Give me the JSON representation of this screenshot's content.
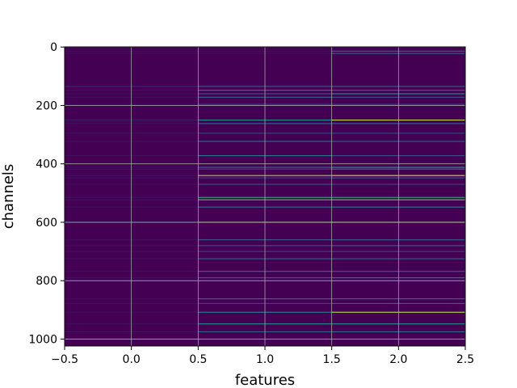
{
  "chart_data": {
    "type": "heatmap",
    "title": "",
    "xlabel": "features",
    "ylabel": "channels",
    "xlim": [
      -0.5,
      2.5
    ],
    "ylim": [
      1023.5,
      -0.5
    ],
    "x_ticks": [
      -0.5,
      0.0,
      0.5,
      1.0,
      1.5,
      2.0,
      2.5
    ],
    "x_tick_labels": [
      "−0.5",
      "0.0",
      "0.5",
      "1.0",
      "1.5",
      "2.0",
      "2.5"
    ],
    "y_ticks": [
      0,
      200,
      400,
      600,
      800,
      1000
    ],
    "y_tick_labels": [
      "0",
      "200",
      "400",
      "600",
      "800",
      "1000"
    ],
    "grid": true,
    "colormap": "viridis",
    "background_color": "#440154",
    "columns": [
      0,
      1,
      2
    ],
    "rows": 1024,
    "bright_channels": [
      {
        "channel": 14,
        "values": [
          0.05,
          0.05,
          0.35
        ]
      },
      {
        "channel": 22,
        "values": [
          0.05,
          0.05,
          0.3
        ]
      },
      {
        "channel": 135,
        "values": [
          0.12,
          0.3,
          0.3
        ]
      },
      {
        "channel": 148,
        "values": [
          0.05,
          0.4,
          0.35
        ]
      },
      {
        "channel": 160,
        "values": [
          0.05,
          0.25,
          0.5
        ]
      },
      {
        "channel": 172,
        "values": [
          0.05,
          0.3,
          0.25
        ]
      },
      {
        "channel": 196,
        "values": [
          0.05,
          0.2,
          0.2
        ]
      },
      {
        "channel": 250,
        "values": [
          0.08,
          0.5,
          0.9
        ]
      },
      {
        "channel": 262,
        "values": [
          0.05,
          0.3,
          0.3
        ]
      },
      {
        "channel": 295,
        "values": [
          0.05,
          0.2,
          0.2
        ]
      },
      {
        "channel": 323,
        "values": [
          0.05,
          0.35,
          0.3
        ]
      },
      {
        "channel": 372,
        "values": [
          0.05,
          0.4,
          0.25
        ]
      },
      {
        "channel": 412,
        "values": [
          0.05,
          0.35,
          0.55
        ]
      },
      {
        "channel": 418,
        "values": [
          0.05,
          0.2,
          0.4
        ]
      },
      {
        "channel": 440,
        "values": [
          0.05,
          0.85,
          0.95
        ]
      },
      {
        "channel": 448,
        "values": [
          0.05,
          0.2,
          0.3
        ]
      },
      {
        "channel": 470,
        "values": [
          0.05,
          0.25,
          0.2
        ]
      },
      {
        "channel": 515,
        "values": [
          0.05,
          0.6,
          0.6
        ]
      },
      {
        "channel": 523,
        "values": [
          0.05,
          0.7,
          0.75
        ]
      },
      {
        "channel": 548,
        "values": [
          0.05,
          0.35,
          0.4
        ]
      },
      {
        "channel": 600,
        "values": [
          0.3,
          0.85,
          0.85
        ]
      },
      {
        "channel": 660,
        "values": [
          0.05,
          0.3,
          0.3
        ]
      },
      {
        "channel": 680,
        "values": [
          0.05,
          0.25,
          0.3
        ]
      },
      {
        "channel": 700,
        "values": [
          0.05,
          0.2,
          0.2
        ]
      },
      {
        "channel": 725,
        "values": [
          0.05,
          0.3,
          0.3
        ]
      },
      {
        "channel": 768,
        "values": [
          0.05,
          0.35,
          0.3
        ]
      },
      {
        "channel": 790,
        "values": [
          0.05,
          0.3,
          0.4
        ]
      },
      {
        "channel": 800,
        "values": [
          0.2,
          0.2,
          0.25
        ]
      },
      {
        "channel": 862,
        "values": [
          0.05,
          0.35,
          0.35
        ]
      },
      {
        "channel": 878,
        "values": [
          0.05,
          0.2,
          0.3
        ]
      },
      {
        "channel": 908,
        "values": [
          0.05,
          0.45,
          0.9
        ]
      },
      {
        "channel": 948,
        "values": [
          0.05,
          0.5,
          0.5
        ]
      },
      {
        "channel": 975,
        "values": [
          0.05,
          0.3,
          0.35
        ]
      },
      {
        "channel": 1000,
        "values": [
          0.3,
          0.2,
          0.2
        ]
      }
    ]
  }
}
